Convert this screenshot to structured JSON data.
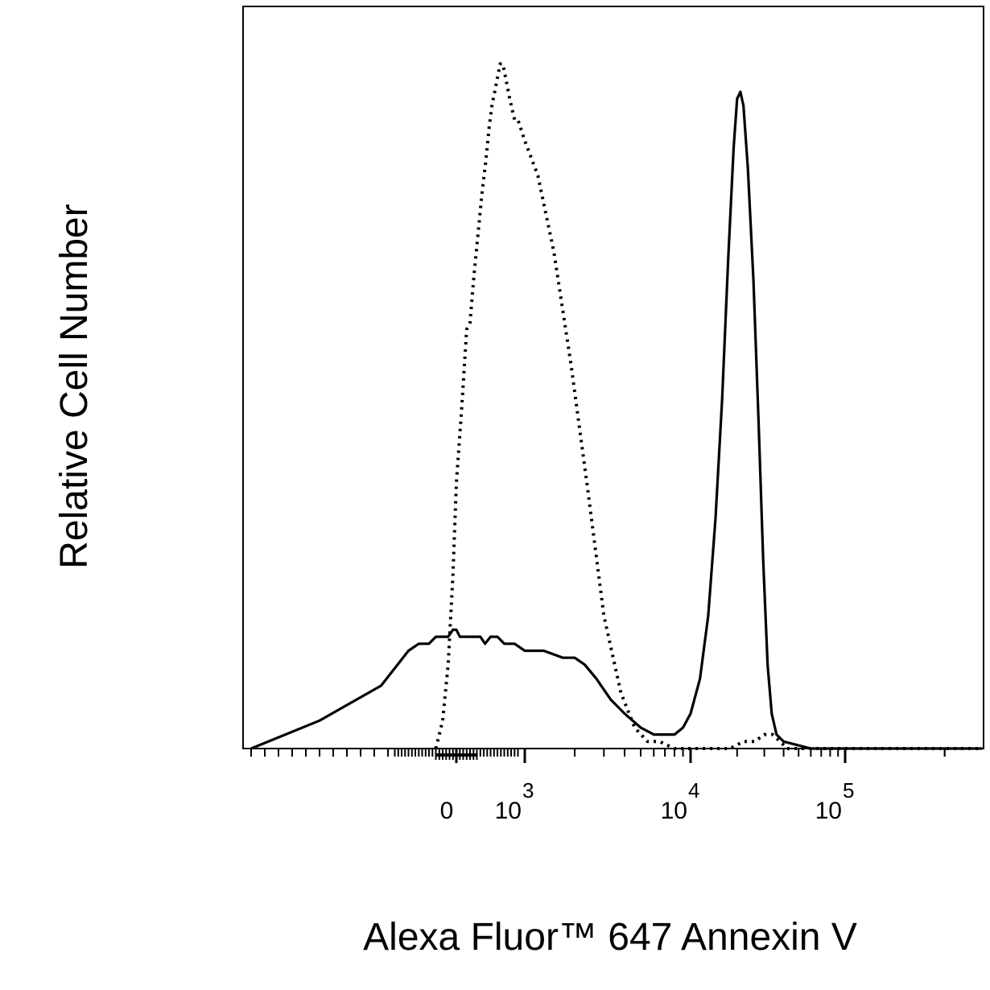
{
  "chart_data": {
    "type": "line",
    "title": "",
    "xlabel": "Alexa Fluor™ 647 Annexin V",
    "ylabel": "Relative Cell Number",
    "x_scale": "biexponential",
    "x_tick_labels": [
      {
        "base": "0",
        "exp": ""
      },
      {
        "base": "10",
        "exp": "3"
      },
      {
        "base": "10",
        "exp": "4"
      },
      {
        "base": "10",
        "exp": "5"
      }
    ],
    "x_tick_values": [
      0,
      1000,
      10000,
      100000
    ],
    "y_range": [
      0,
      100
    ],
    "grid": false,
    "legend": "none",
    "series": [
      {
        "style": "dotted",
        "color": "#000000",
        "points": [
          [
            -300,
            0
          ],
          [
            -200,
            4
          ],
          [
            -120,
            12
          ],
          [
            -50,
            25
          ],
          [
            0,
            38
          ],
          [
            80,
            49
          ],
          [
            150,
            60
          ],
          [
            200,
            61
          ],
          [
            260,
            68
          ],
          [
            320,
            74
          ],
          [
            380,
            80
          ],
          [
            430,
            84
          ],
          [
            480,
            89
          ],
          [
            520,
            92
          ],
          [
            560,
            94
          ],
          [
            600,
            96
          ],
          [
            640,
            98
          ],
          [
            680,
            98
          ],
          [
            720,
            96
          ],
          [
            780,
            93
          ],
          [
            850,
            90
          ],
          [
            900,
            90
          ],
          [
            1000,
            87
          ],
          [
            1200,
            82
          ],
          [
            1500,
            71
          ],
          [
            1900,
            55
          ],
          [
            2400,
            37
          ],
          [
            3000,
            19
          ],
          [
            3800,
            8
          ],
          [
            4600,
            3
          ],
          [
            5500,
            1
          ],
          [
            6500,
            1
          ],
          [
            8000,
            0
          ],
          [
            10000,
            0
          ],
          [
            14000,
            0
          ],
          [
            18000,
            0
          ],
          [
            22000,
            1
          ],
          [
            26000,
            1
          ],
          [
            30000,
            2
          ],
          [
            34000,
            2
          ],
          [
            38000,
            1
          ],
          [
            42000,
            0
          ],
          [
            60000,
            0
          ],
          [
            100000,
            0
          ],
          [
            260000,
            0
          ]
        ]
      },
      {
        "style": "solid",
        "color": "#000000",
        "points": [
          [
            -3000,
            0
          ],
          [
            -2000,
            4
          ],
          [
            -1100,
            9
          ],
          [
            -700,
            14
          ],
          [
            -550,
            15
          ],
          [
            -400,
            15
          ],
          [
            -300,
            16
          ],
          [
            -200,
            16
          ],
          [
            -120,
            16
          ],
          [
            -50,
            17
          ],
          [
            0,
            17
          ],
          [
            50,
            16
          ],
          [
            120,
            16
          ],
          [
            200,
            16
          ],
          [
            280,
            16
          ],
          [
            350,
            16
          ],
          [
            420,
            15
          ],
          [
            500,
            16
          ],
          [
            600,
            16
          ],
          [
            700,
            15
          ],
          [
            850,
            15
          ],
          [
            1000,
            14
          ],
          [
            1300,
            14
          ],
          [
            1700,
            13
          ],
          [
            2000,
            13
          ],
          [
            2300,
            12
          ],
          [
            2700,
            10
          ],
          [
            3300,
            7
          ],
          [
            4000,
            5
          ],
          [
            5000,
            3
          ],
          [
            6000,
            2
          ],
          [
            7000,
            2
          ],
          [
            8000,
            2
          ],
          [
            9000,
            3
          ],
          [
            10000,
            5
          ],
          [
            11500,
            10
          ],
          [
            13000,
            19
          ],
          [
            14500,
            33
          ],
          [
            16000,
            50
          ],
          [
            17500,
            70
          ],
          [
            19000,
            86
          ],
          [
            20000,
            93
          ],
          [
            21000,
            94
          ],
          [
            22000,
            92
          ],
          [
            23500,
            83
          ],
          [
            25500,
            67
          ],
          [
            27500,
            47
          ],
          [
            29500,
            27
          ],
          [
            31500,
            12
          ],
          [
            33500,
            5
          ],
          [
            36000,
            2
          ],
          [
            40000,
            1
          ],
          [
            60000,
            0
          ],
          [
            260000,
            0
          ]
        ]
      }
    ]
  }
}
